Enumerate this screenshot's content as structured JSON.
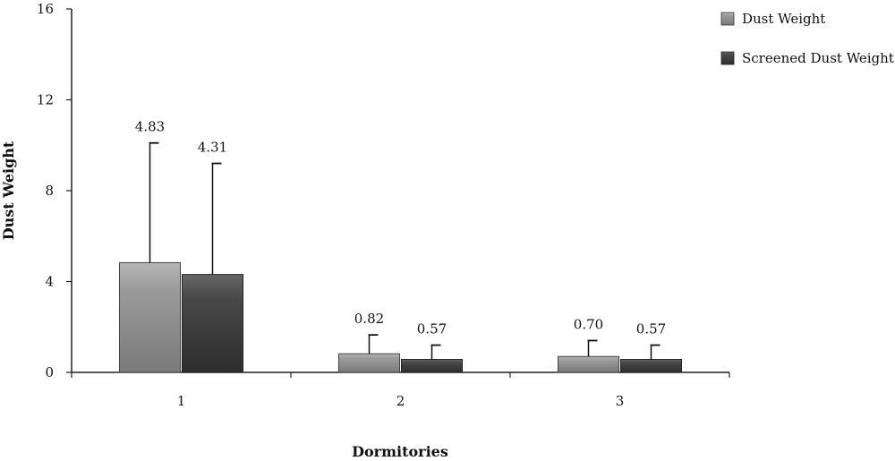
{
  "chart_data": {
    "type": "bar",
    "categories": [
      "1",
      "2",
      "3"
    ],
    "series": [
      {
        "name": "Dust Weight",
        "values": [
          4.83,
          0.82,
          0.7
        ],
        "error_upper": [
          10.1,
          1.65,
          1.4
        ],
        "labels": [
          "4.83",
          "0.82",
          "0.70"
        ],
        "color": "#8c8c8c"
      },
      {
        "name": "Screened Dust Weight",
        "values": [
          4.31,
          0.57,
          0.57
        ],
        "error_upper": [
          9.2,
          1.2,
          1.2
        ],
        "labels": [
          "4.31",
          "0.57",
          "0.57"
        ],
        "color": "#3a3a3a"
      }
    ],
    "xlabel": "Dormitories",
    "ylabel": "Dust Weight",
    "ylim": [
      0,
      16
    ],
    "yticks": [
      "0",
      "4",
      "8",
      "12",
      "16"
    ],
    "grid": false,
    "legend_position": "top-right"
  }
}
